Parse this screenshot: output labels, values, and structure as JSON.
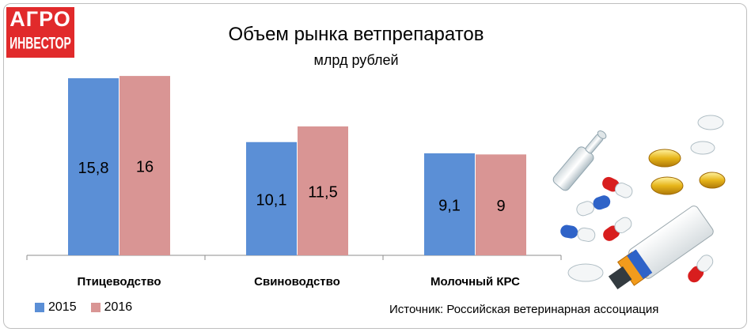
{
  "brand": {
    "line1": "АГРО",
    "line2": "ИНВЕСТОР"
  },
  "chart_data": {
    "type": "bar",
    "title": "Объем рынка ветпрепаратов",
    "subtitle": "млрд рублей",
    "categories": [
      "Птицеводство",
      "Свиноводство",
      "Молочный КРС"
    ],
    "series": [
      {
        "name": "2015",
        "values": [
          15.8,
          10.1,
          9.1
        ],
        "labels": [
          "15,8",
          "10,1",
          "9,1"
        ],
        "color": "#5b8fd6"
      },
      {
        "name": "2016",
        "values": [
          16,
          11.5,
          9
        ],
        "labels": [
          "16",
          "11,5",
          "9"
        ],
        "color": "#d99594"
      }
    ],
    "ylim": [
      0,
      16.5
    ],
    "grid": false,
    "legend_position": "bottom-left"
  },
  "source": "Источник: Российская ветеринарная ассоциация",
  "illustration": {
    "icon": "pills-and-ointment-icon"
  }
}
